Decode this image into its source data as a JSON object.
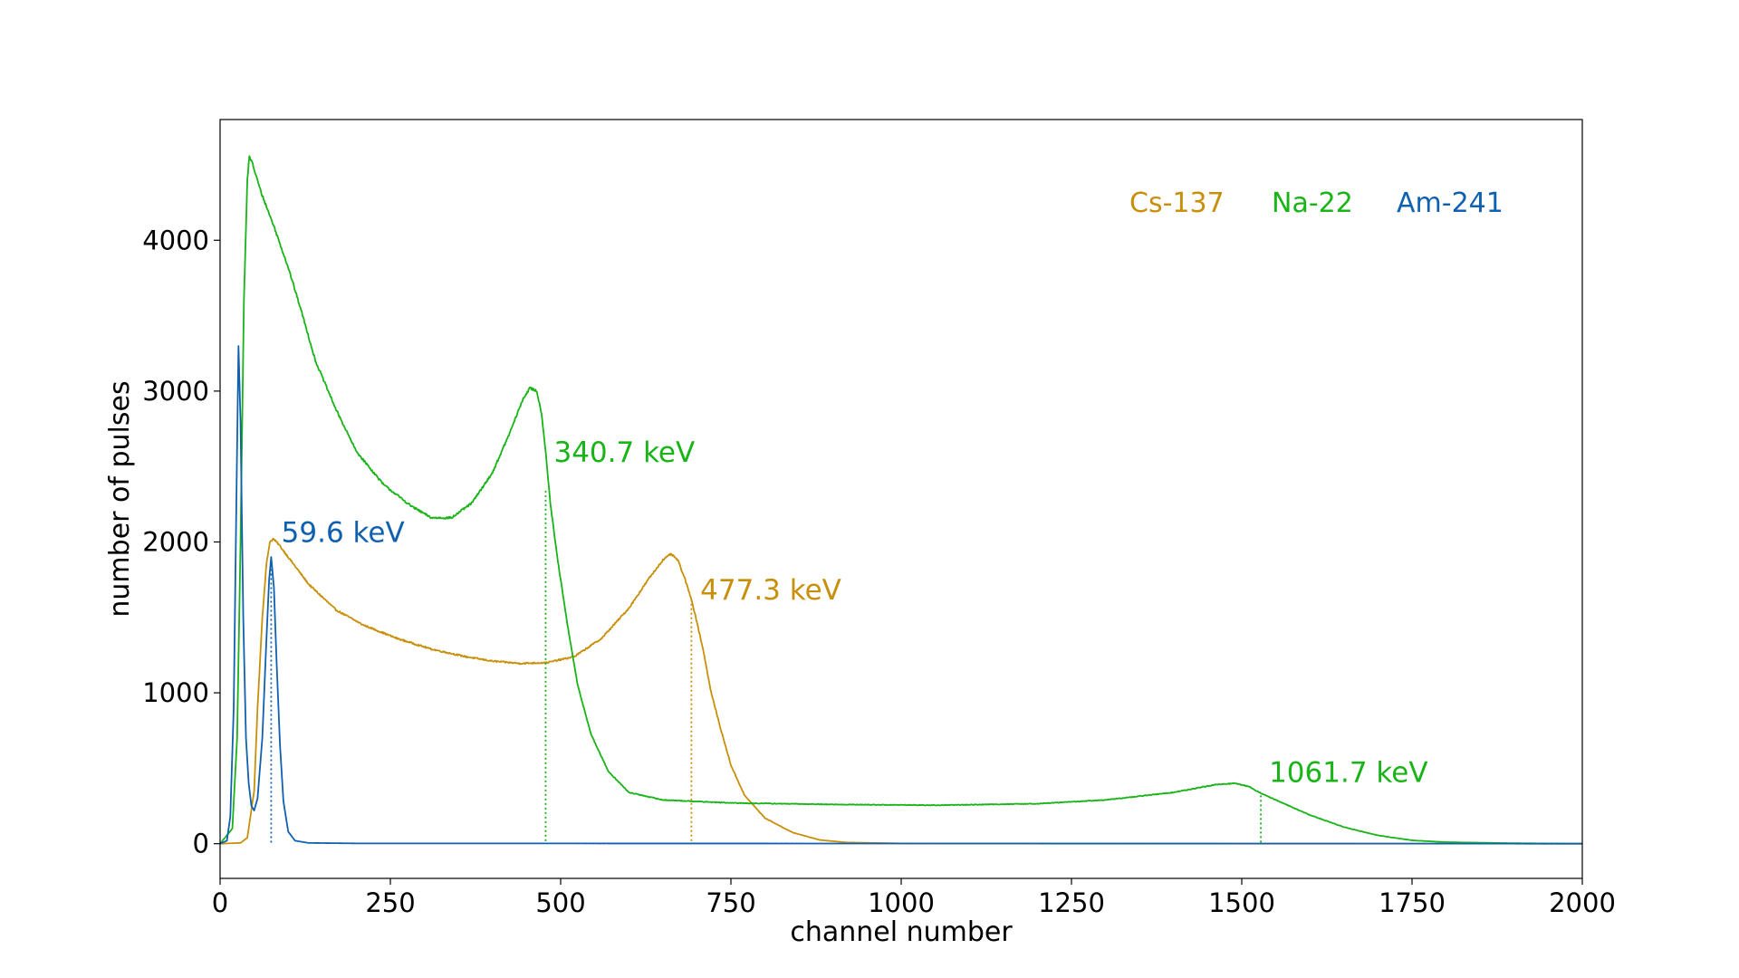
{
  "chart_data": {
    "type": "line",
    "title": "",
    "xlabel": "channel number",
    "ylabel": "number of pulses",
    "xlim": [
      0,
      2000
    ],
    "ylim": [
      -230,
      4800
    ],
    "xticks": [
      0,
      250,
      500,
      750,
      1000,
      1250,
      1500,
      1750,
      2000
    ],
    "yticks": [
      0,
      1000,
      2000,
      3000,
      4000
    ],
    "grid": false,
    "legend_position": "top-right",
    "series": [
      {
        "name": "Cs-137",
        "color": "#c8900a",
        "points": [
          [
            0,
            0
          ],
          [
            30,
            5
          ],
          [
            40,
            40
          ],
          [
            50,
            350
          ],
          [
            55,
            900
          ],
          [
            62,
            1500
          ],
          [
            68,
            1850
          ],
          [
            73,
            2000
          ],
          [
            78,
            2020
          ],
          [
            85,
            1990
          ],
          [
            100,
            1900
          ],
          [
            130,
            1720
          ],
          [
            170,
            1550
          ],
          [
            210,
            1450
          ],
          [
            260,
            1360
          ],
          [
            310,
            1290
          ],
          [
            360,
            1240
          ],
          [
            400,
            1210
          ],
          [
            440,
            1195
          ],
          [
            480,
            1200
          ],
          [
            520,
            1240
          ],
          [
            560,
            1360
          ],
          [
            600,
            1560
          ],
          [
            630,
            1760
          ],
          [
            650,
            1880
          ],
          [
            662,
            1920
          ],
          [
            672,
            1880
          ],
          [
            682,
            1760
          ],
          [
            692,
            1620
          ],
          [
            700,
            1470
          ],
          [
            710,
            1270
          ],
          [
            720,
            1020
          ],
          [
            735,
            760
          ],
          [
            750,
            520
          ],
          [
            770,
            320
          ],
          [
            800,
            170
          ],
          [
            840,
            75
          ],
          [
            880,
            25
          ],
          [
            920,
            8
          ],
          [
            1000,
            2
          ],
          [
            1500,
            1
          ],
          [
            2000,
            0
          ]
        ],
        "noise": 0.045
      },
      {
        "name": "Na-22",
        "color": "#18b418",
        "points": [
          [
            0,
            0
          ],
          [
            18,
            100
          ],
          [
            25,
            700
          ],
          [
            30,
            2000
          ],
          [
            35,
            3600
          ],
          [
            40,
            4400
          ],
          [
            43,
            4560
          ],
          [
            48,
            4500
          ],
          [
            60,
            4320
          ],
          [
            80,
            4080
          ],
          [
            100,
            3820
          ],
          [
            120,
            3520
          ],
          [
            140,
            3200
          ],
          [
            170,
            2880
          ],
          [
            200,
            2600
          ],
          [
            240,
            2380
          ],
          [
            280,
            2240
          ],
          [
            310,
            2160
          ],
          [
            340,
            2160
          ],
          [
            370,
            2260
          ],
          [
            400,
            2460
          ],
          [
            425,
            2720
          ],
          [
            445,
            2950
          ],
          [
            455,
            3020
          ],
          [
            465,
            3000
          ],
          [
            472,
            2850
          ],
          [
            478,
            2600
          ],
          [
            485,
            2250
          ],
          [
            495,
            1900
          ],
          [
            510,
            1450
          ],
          [
            525,
            1050
          ],
          [
            545,
            720
          ],
          [
            570,
            480
          ],
          [
            600,
            340
          ],
          [
            650,
            290
          ],
          [
            750,
            270
          ],
          [
            900,
            260
          ],
          [
            1050,
            255
          ],
          [
            1200,
            265
          ],
          [
            1300,
            290
          ],
          [
            1400,
            340
          ],
          [
            1460,
            390
          ],
          [
            1490,
            400
          ],
          [
            1510,
            380
          ],
          [
            1530,
            330
          ],
          [
            1560,
            270
          ],
          [
            1600,
            190
          ],
          [
            1650,
            110
          ],
          [
            1700,
            55
          ],
          [
            1750,
            22
          ],
          [
            1800,
            10
          ],
          [
            1900,
            3
          ],
          [
            2000,
            0
          ]
        ],
        "noise": 0.045
      },
      {
        "name": "Am-241",
        "color": "#1060b0",
        "points": [
          [
            0,
            0
          ],
          [
            10,
            20
          ],
          [
            15,
            180
          ],
          [
            20,
            900
          ],
          [
            24,
            2300
          ],
          [
            27,
            3300
          ],
          [
            30,
            2800
          ],
          [
            34,
            1500
          ],
          [
            38,
            700
          ],
          [
            42,
            400
          ],
          [
            46,
            250
          ],
          [
            50,
            220
          ],
          [
            55,
            300
          ],
          [
            62,
            700
          ],
          [
            68,
            1350
          ],
          [
            72,
            1750
          ],
          [
            75,
            1900
          ],
          [
            79,
            1700
          ],
          [
            83,
            1200
          ],
          [
            88,
            650
          ],
          [
            93,
            280
          ],
          [
            100,
            80
          ],
          [
            110,
            20
          ],
          [
            130,
            5
          ],
          [
            200,
            2
          ],
          [
            2000,
            0
          ]
        ],
        "noise": 0.01
      }
    ],
    "markers": [
      {
        "series": "Am-241",
        "x": 75,
        "y_top": 1880,
        "label": "59.6 keV",
        "label_x": 90,
        "label_y": 2000
      },
      {
        "series": "Na-22",
        "x": 478,
        "y_top": 2340,
        "label": "340.7 keV",
        "label_x": 490,
        "label_y": 2530
      },
      {
        "series": "Cs-137",
        "x": 692,
        "y_top": 1620,
        "label": "477.3 keV",
        "label_x": 705,
        "label_y": 1620
      },
      {
        "series": "Na-22",
        "x": 1528,
        "y_top": 320,
        "label": "1061.7 keV",
        "label_x": 1540,
        "label_y": 410
      }
    ]
  }
}
